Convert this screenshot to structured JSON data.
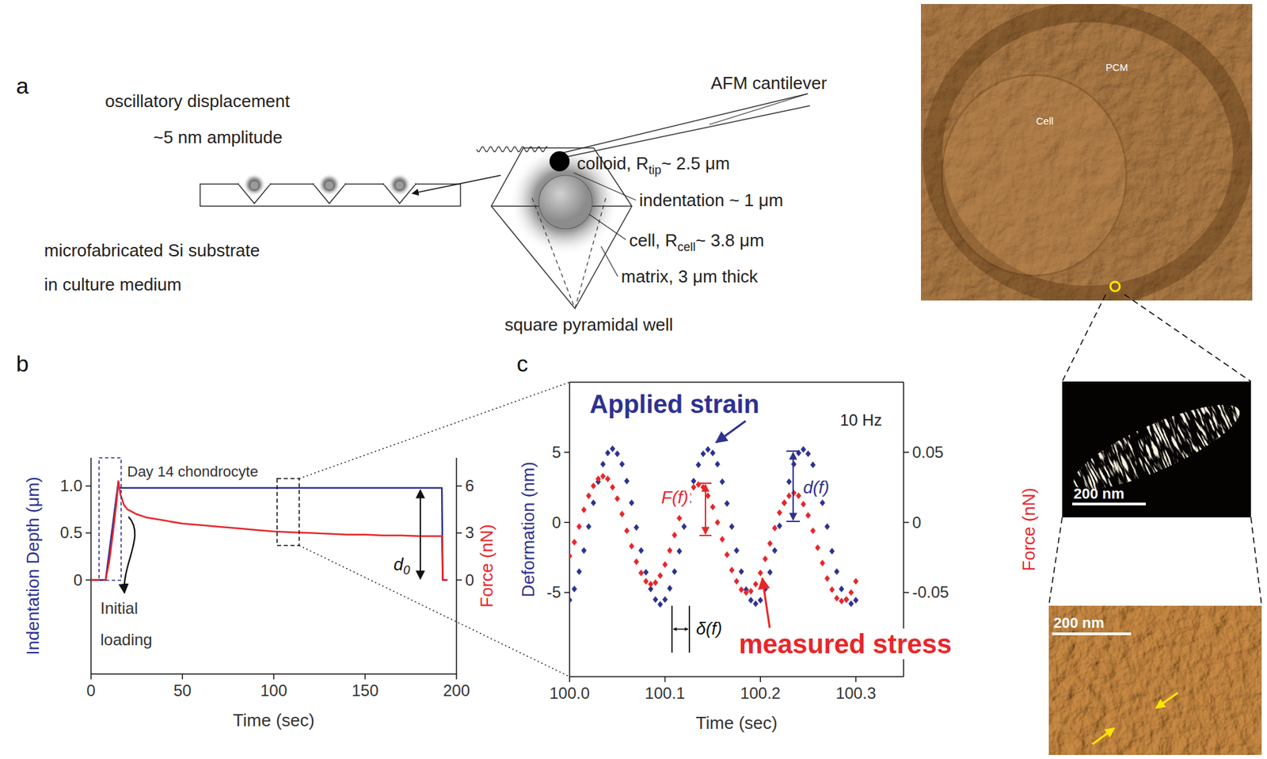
{
  "diagram": {
    "panel_label": "a",
    "cantilever": "AFM cantilever",
    "oscillation": [
      "oscillatory displacement",
      "~5 nm amplitude"
    ],
    "colloid": {
      "base": "colloid, R",
      "sub": "tip",
      "rest": "~ 2.5 μm"
    },
    "indentation": "indentation ~ 1 μm",
    "cell": {
      "base": "cell, R",
      "sub": "cell",
      "rest": "~ 3.8 μm"
    },
    "matrix": "matrix, 3 μm thick",
    "well": "square pyramidal well",
    "substrate": [
      "microfabricated Si substrate",
      "in culture medium"
    ]
  },
  "chart_data": [
    {
      "type": "line",
      "panel_label": "b",
      "x_label": "Time (sec)",
      "y_label": "Indentation Depth (μm)",
      "y2_label": "Force (nN)",
      "xlim": [
        0,
        200
      ],
      "xticks": [
        0,
        50,
        100,
        150,
        200
      ],
      "ylim": [
        -1,
        1.3
      ],
      "yticks": [
        0,
        0.5,
        {
          "value": 1,
          "label": "1.0"
        }
      ],
      "y2lim": [
        -6,
        7.8
      ],
      "y2ticks": [
        0,
        3,
        6
      ],
      "series": [
        {
          "color": "#2e3192",
          "line_style": "solid",
          "x": [
            0,
            8,
            15,
            15.5,
            192,
            192.5,
            195
          ],
          "values": [
            0,
            0,
            1.05,
            0.98,
            0.98,
            0,
            0
          ]
        },
        {
          "color": "#e8262a",
          "line_style": "solid",
          "axis": "y2",
          "x": [
            0,
            8,
            10,
            12,
            14,
            15,
            16,
            18,
            20,
            25,
            30,
            40,
            50,
            60,
            70,
            80,
            90,
            100,
            110,
            120,
            130,
            140,
            150,
            160,
            170,
            180,
            190,
            192,
            192.5,
            195
          ],
          "values": [
            0,
            0,
            1.2,
            3,
            5,
            6.3,
            5.5,
            4.8,
            4.5,
            4.2,
            4,
            3.8,
            3.6,
            3.5,
            3.4,
            3.3,
            3.2,
            3.1,
            3.05,
            3,
            2.95,
            2.9,
            2.9,
            2.85,
            2.85,
            2.8,
            2.8,
            2.8,
            0,
            0
          ]
        }
      ],
      "annotations": {
        "sample": "Day 14 chondrocyte",
        "initial_loading": [
          "Initial",
          "loading"
        ],
        "depth": {
          "base": "d",
          "sub": "0"
        }
      }
    },
    {
      "type": "line",
      "panel_label": "c",
      "x_label": "Time (sec)",
      "y_label": "Deformation (nm)",
      "y2_label": "Force (nN)",
      "xlim": [
        100,
        100.35
      ],
      "xticks": [
        {
          "value": 100,
          "label": "100.0"
        },
        100.1,
        100.2,
        100.3
      ],
      "ylim": [
        -11,
        10
      ],
      "yticks": [
        -5,
        0,
        5
      ],
      "y2lim": [
        -0.11,
        0.1
      ],
      "y2ticks": [
        -0.05,
        0,
        0.05
      ],
      "x": [
        100,
        100.005,
        100.01,
        100.015,
        100.02,
        100.025,
        100.03,
        100.035,
        100.04,
        100.045,
        100.05,
        100.055,
        100.06,
        100.065,
        100.07,
        100.075,
        100.08,
        100.085,
        100.09,
        100.095,
        100.1,
        100.105,
        100.11,
        100.115,
        100.12,
        100.125,
        100.13,
        100.135,
        100.14,
        100.145,
        100.15,
        100.155,
        100.16,
        100.165,
        100.17,
        100.175,
        100.18,
        100.185,
        100.19,
        100.195,
        100.2,
        100.205,
        100.21,
        100.215,
        100.22,
        100.225,
        100.23,
        100.235,
        100.24,
        100.245,
        100.25,
        100.255,
        100.26,
        100.265,
        100.27,
        100.275,
        100.28,
        100.285,
        100.29,
        100.295,
        100.3
      ],
      "series": [
        {
          "color": "#2e3192",
          "marker": "diamond",
          "line_style": "none",
          "values": [
            -5.53,
            -4.75,
            -3.5,
            -2.0,
            -0.3,
            1.4,
            2.9,
            4.15,
            4.95,
            5.25,
            4.9,
            4.15,
            2.95,
            1.4,
            -0.35,
            -2.0,
            -3.55,
            -4.75,
            -5.5,
            -5.85,
            -5.5,
            -4.7,
            -3.5,
            -2.05,
            -0.3,
            1.45,
            2.95,
            4.1,
            4.9,
            5.2,
            4.95,
            4.15,
            2.9,
            1.35,
            -0.3,
            -2.0,
            -3.5,
            -4.8,
            -5.55,
            -5.8,
            -5.55,
            -4.75,
            -3.55,
            -2.0,
            -0.25,
            1.4,
            2.9,
            4.15,
            4.95,
            5.2,
            4.9,
            4.1,
            2.95,
            1.4,
            -0.3,
            -2.05,
            -3.5,
            -4.75,
            -5.5,
            -5.8,
            -5.55
          ]
        },
        {
          "color": "#e8262a",
          "marker": "diamond",
          "line_style": "none",
          "axis": "y2",
          "values": [
            -0.024,
            -0.014,
            -0.003,
            0.009,
            0.019,
            0.026,
            0.031,
            0.033,
            0.031,
            0.025,
            0.017,
            0.006,
            -0.006,
            -0.017,
            -0.028,
            -0.036,
            -0.042,
            -0.044,
            -0.043,
            -0.038,
            -0.03,
            -0.02,
            -0.009,
            0.003,
            0.013,
            0.02,
            0.025,
            0.027,
            0.025,
            0.019,
            0.011,
            0,
            -0.012,
            -0.023,
            -0.034,
            -0.042,
            -0.048,
            -0.05,
            -0.049,
            -0.044,
            -0.036,
            -0.026,
            -0.015,
            -0.004,
            0.007,
            0.014,
            0.019,
            0.021,
            0.019,
            0.013,
            0.005,
            -0.006,
            -0.018,
            -0.029,
            -0.04,
            -0.048,
            -0.054,
            -0.056,
            -0.055,
            -0.05,
            -0.042
          ]
        }
      ],
      "annotations": {
        "strain": "Applied strain",
        "stress": "measured stress",
        "frequency": "10 Hz",
        "force_amplitude": "F(f)",
        "deformation_amplitude": "d(f)",
        "phase_lag": "δ(f)"
      }
    }
  ],
  "images": {
    "overview": {
      "labels": [
        "PCM",
        "Cell"
      ]
    },
    "zoom_1": {
      "scale_bar": "200 nm"
    },
    "zoom_2": {
      "scale_bar": "200 nm"
    }
  }
}
